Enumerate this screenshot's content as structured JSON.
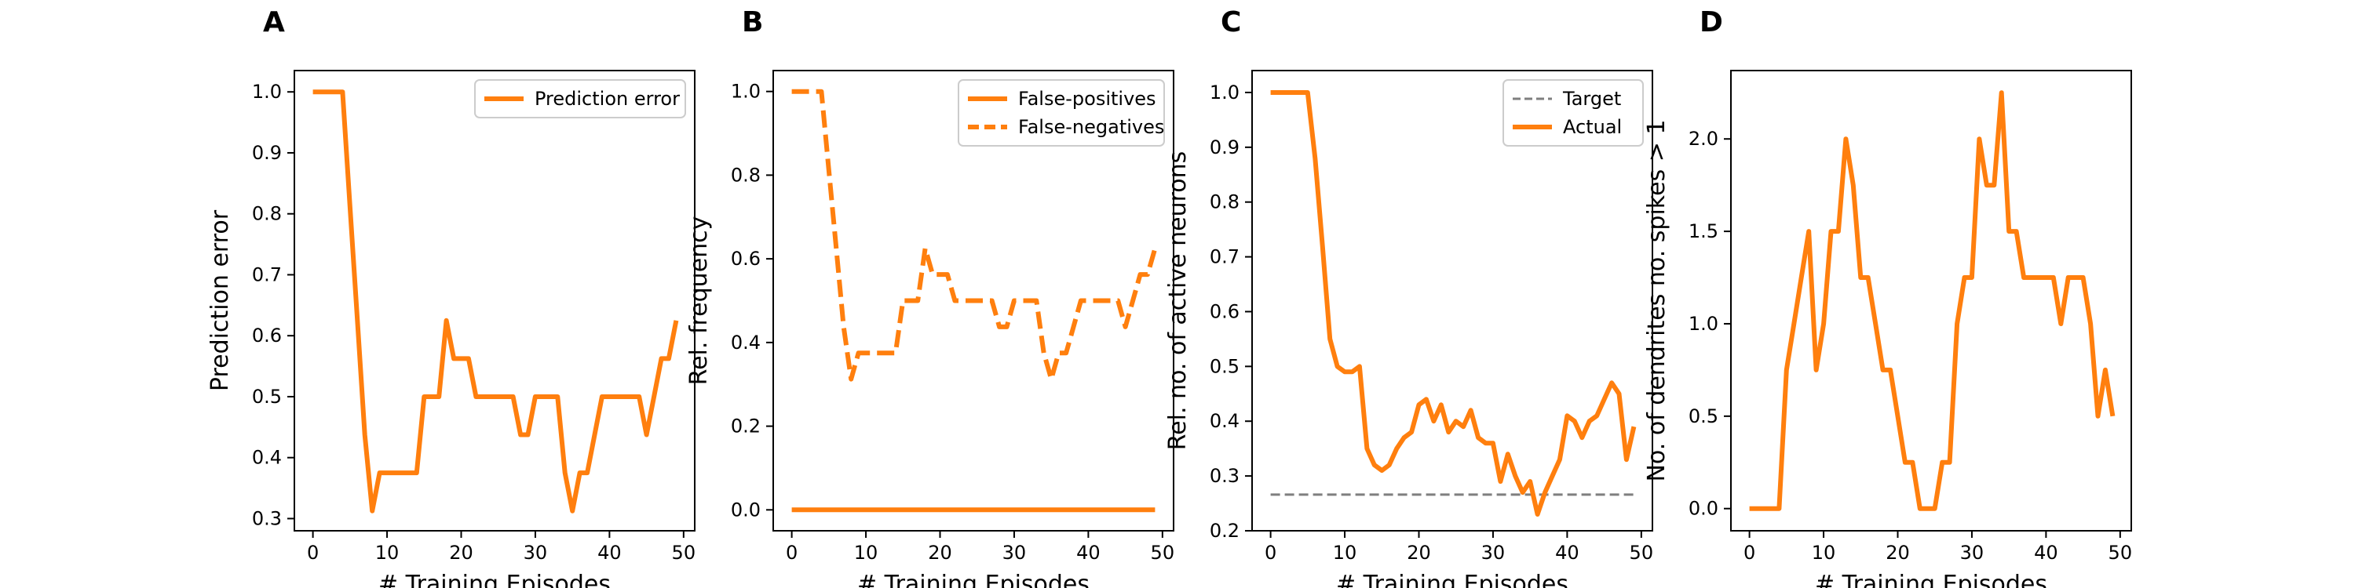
{
  "colors": {
    "series": "#ff7f0e",
    "target": "#7f7f7f",
    "axis": "#000000"
  },
  "chart_data": [
    {
      "panel_label": "A",
      "type": "line",
      "xlabel": "# Training Episodes",
      "ylabel": "Prediction error",
      "xlim": [
        -2.5,
        51.5
      ],
      "ylim": [
        0.28,
        1.035
      ],
      "xticks": [
        0,
        10,
        20,
        30,
        40,
        50
      ],
      "yticks": [
        0.3,
        0.4,
        0.5,
        0.6,
        0.7,
        0.8,
        0.9,
        1.0
      ],
      "ytick_format": 1,
      "legend_position": "top-right",
      "series": [
        {
          "name": "Prediction error",
          "style": "solid",
          "x": [
            0,
            1,
            2,
            3,
            4,
            5,
            6,
            7,
            8,
            9,
            10,
            11,
            12,
            13,
            14,
            15,
            16,
            17,
            18,
            19,
            20,
            21,
            22,
            23,
            24,
            25,
            26,
            27,
            28,
            29,
            30,
            31,
            32,
            33,
            34,
            35,
            36,
            37,
            38,
            39,
            40,
            41,
            42,
            43,
            44,
            45,
            46,
            47,
            48,
            49
          ],
          "y": [
            1.0,
            1.0,
            1.0,
            1.0,
            1.0,
            0.8125,
            0.625,
            0.4375,
            0.3125,
            0.375,
            0.375,
            0.375,
            0.375,
            0.375,
            0.375,
            0.5,
            0.5,
            0.5,
            0.625,
            0.5625,
            0.5625,
            0.5625,
            0.5,
            0.5,
            0.5,
            0.5,
            0.5,
            0.5,
            0.4375,
            0.4375,
            0.5,
            0.5,
            0.5,
            0.5,
            0.375,
            0.3125,
            0.375,
            0.375,
            0.4375,
            0.5,
            0.5,
            0.5,
            0.5,
            0.5,
            0.5,
            0.4375,
            0.5,
            0.5625,
            0.5625,
            0.625
          ]
        }
      ]
    },
    {
      "panel_label": "B",
      "type": "line",
      "xlabel": "# Training Episodes",
      "ylabel": "Rel. frequency",
      "xlim": [
        -2.5,
        51.5
      ],
      "ylim": [
        -0.05,
        1.05
      ],
      "xticks": [
        0,
        10,
        20,
        30,
        40,
        50
      ],
      "yticks": [
        0.0,
        0.2,
        0.4,
        0.6,
        0.8,
        1.0
      ],
      "ytick_format": 1,
      "legend_position": "top-right",
      "series": [
        {
          "name": "False-positives",
          "style": "solid",
          "x": [
            0,
            49
          ],
          "y": [
            0.0,
            0.0
          ]
        },
        {
          "name": "False-negatives",
          "style": "dashed",
          "x": [
            0,
            1,
            2,
            3,
            4,
            5,
            6,
            7,
            8,
            9,
            10,
            11,
            12,
            13,
            14,
            15,
            16,
            17,
            18,
            19,
            20,
            21,
            22,
            23,
            24,
            25,
            26,
            27,
            28,
            29,
            30,
            31,
            32,
            33,
            34,
            35,
            36,
            37,
            38,
            39,
            40,
            41,
            42,
            43,
            44,
            45,
            46,
            47,
            48,
            49
          ],
          "y": [
            1.0,
            1.0,
            1.0,
            1.0,
            1.0,
            0.8125,
            0.625,
            0.4375,
            0.3125,
            0.375,
            0.375,
            0.375,
            0.375,
            0.375,
            0.375,
            0.5,
            0.5,
            0.5,
            0.625,
            0.5625,
            0.5625,
            0.5625,
            0.5,
            0.5,
            0.5,
            0.5,
            0.5,
            0.5,
            0.4375,
            0.4375,
            0.5,
            0.5,
            0.5,
            0.5,
            0.375,
            0.3125,
            0.375,
            0.375,
            0.4375,
            0.5,
            0.5,
            0.5,
            0.5,
            0.5,
            0.5,
            0.4375,
            0.5,
            0.5625,
            0.5625,
            0.625
          ]
        }
      ]
    },
    {
      "panel_label": "C",
      "type": "line",
      "xlabel": "# Training Episodes",
      "ylabel": "Rel. no. of active neurons",
      "xlim": [
        -2.5,
        51.5
      ],
      "ylim": [
        0.2,
        1.04
      ],
      "xticks": [
        0,
        10,
        20,
        30,
        40,
        50
      ],
      "yticks": [
        0.2,
        0.3,
        0.4,
        0.5,
        0.6,
        0.7,
        0.8,
        0.9,
        1.0
      ],
      "ytick_format": 1,
      "legend_position": "top-right",
      "series": [
        {
          "name": "Target",
          "style": "dashed-thin",
          "color_key": "target",
          "x": [
            0,
            49
          ],
          "y": [
            0.266,
            0.266
          ]
        },
        {
          "name": "Actual",
          "style": "solid",
          "x": [
            0,
            1,
            2,
            3,
            4,
            5,
            6,
            7,
            8,
            9,
            10,
            11,
            12,
            13,
            14,
            15,
            16,
            17,
            18,
            19,
            20,
            21,
            22,
            23,
            24,
            25,
            26,
            27,
            28,
            29,
            30,
            31,
            32,
            33,
            34,
            35,
            36,
            37,
            38,
            39,
            40,
            41,
            42,
            43,
            44,
            45,
            46,
            47,
            48,
            49
          ],
          "y": [
            1.0,
            1.0,
            1.0,
            1.0,
            1.0,
            1.0,
            0.88,
            0.72,
            0.55,
            0.5,
            0.49,
            0.49,
            0.5,
            0.35,
            0.32,
            0.31,
            0.32,
            0.35,
            0.37,
            0.38,
            0.43,
            0.44,
            0.4,
            0.43,
            0.38,
            0.4,
            0.39,
            0.42,
            0.37,
            0.36,
            0.36,
            0.29,
            0.34,
            0.3,
            0.27,
            0.29,
            0.23,
            0.27,
            0.3,
            0.33,
            0.41,
            0.4,
            0.37,
            0.4,
            0.41,
            0.44,
            0.47,
            0.45,
            0.33,
            0.39
          ]
        }
      ]
    },
    {
      "panel_label": "D",
      "type": "line",
      "xlabel": "# Training Episodes",
      "ylabel": "No. of dendrites no. spikes > 1",
      "xlim": [
        -2.5,
        51.5
      ],
      "ylim": [
        -0.12,
        2.37
      ],
      "xticks": [
        0,
        10,
        20,
        30,
        40,
        50
      ],
      "yticks": [
        0.0,
        0.5,
        1.0,
        1.5,
        2.0
      ],
      "ytick_format": 1,
      "legend_position": "none",
      "series": [
        {
          "name": "",
          "style": "solid",
          "x": [
            0,
            1,
            2,
            3,
            4,
            5,
            6,
            7,
            8,
            9,
            10,
            11,
            12,
            13,
            14,
            15,
            16,
            17,
            18,
            19,
            20,
            21,
            22,
            23,
            24,
            25,
            26,
            27,
            28,
            29,
            30,
            31,
            32,
            33,
            34,
            35,
            36,
            37,
            38,
            39,
            40,
            41,
            42,
            43,
            44,
            45,
            46,
            47,
            48,
            49
          ],
          "y": [
            0.0,
            0.0,
            0.0,
            0.0,
            0.0,
            0.75,
            1.0,
            1.25,
            1.5,
            0.75,
            1.0,
            1.5,
            1.5,
            2.0,
            1.75,
            1.25,
            1.25,
            1.0,
            0.75,
            0.75,
            0.5,
            0.25,
            0.25,
            0.0,
            0.0,
            0.0,
            0.25,
            0.25,
            1.0,
            1.25,
            1.25,
            2.0,
            1.75,
            1.75,
            2.25,
            1.5,
            1.5,
            1.25,
            1.25,
            1.25,
            1.25,
            1.25,
            1.0,
            1.25,
            1.25,
            1.25,
            1.0,
            0.5,
            0.75,
            0.5
          ]
        }
      ]
    }
  ]
}
